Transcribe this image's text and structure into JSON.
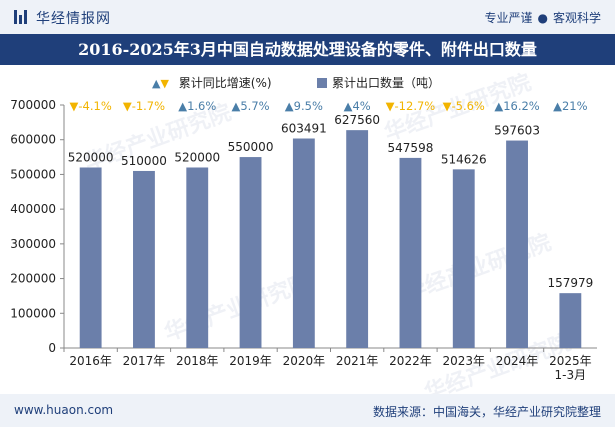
{
  "header": {
    "brand": "华经情报网",
    "tag1": "专业严谨",
    "tag2": "客观科学"
  },
  "title": "2016-2025年3月中国自动数据处理设备的零件、附件出口数量",
  "legend": {
    "growth": "累计同比增速(%)",
    "volume": "累计出口数量（吨）"
  },
  "watermark": "华经产业研究院",
  "footer": {
    "url": "www.huaon.com",
    "source": "数据来源：中国海关，华经产业研究院整理"
  },
  "colors": {
    "bar": "#6b7faa",
    "up": "#4a7ea8",
    "down": "#f2b400",
    "brand": "#1f3f7a"
  },
  "chart_data": {
    "type": "bar",
    "categories": [
      "2016年",
      "2017年",
      "2018年",
      "2019年",
      "2020年",
      "2021年",
      "2022年",
      "2023年",
      "2024年",
      "2025年\n1-3月"
    ],
    "series": [
      {
        "name": "累计出口数量（吨）",
        "values": [
          520000,
          510000,
          520000,
          550000,
          603491,
          627560,
          547598,
          514626,
          597603,
          157979
        ]
      },
      {
        "name": "累计同比增速(%)",
        "values": [
          -4.1,
          -1.7,
          1.6,
          5.7,
          9.5,
          4,
          -12.7,
          -5.6,
          16.2,
          21
        ]
      }
    ],
    "growth_labels": [
      "-4.1%",
      "-1.7%",
      "1.6%",
      "5.7%",
      "9.5%",
      "4%",
      "-12.7%",
      "-5.6%",
      "16.2%",
      "21%"
    ],
    "y_ticks": [
      0,
      100000,
      200000,
      300000,
      400000,
      500000,
      600000,
      700000
    ],
    "ylim": [
      0,
      700000
    ],
    "xlabel": "",
    "ylabel": ""
  }
}
